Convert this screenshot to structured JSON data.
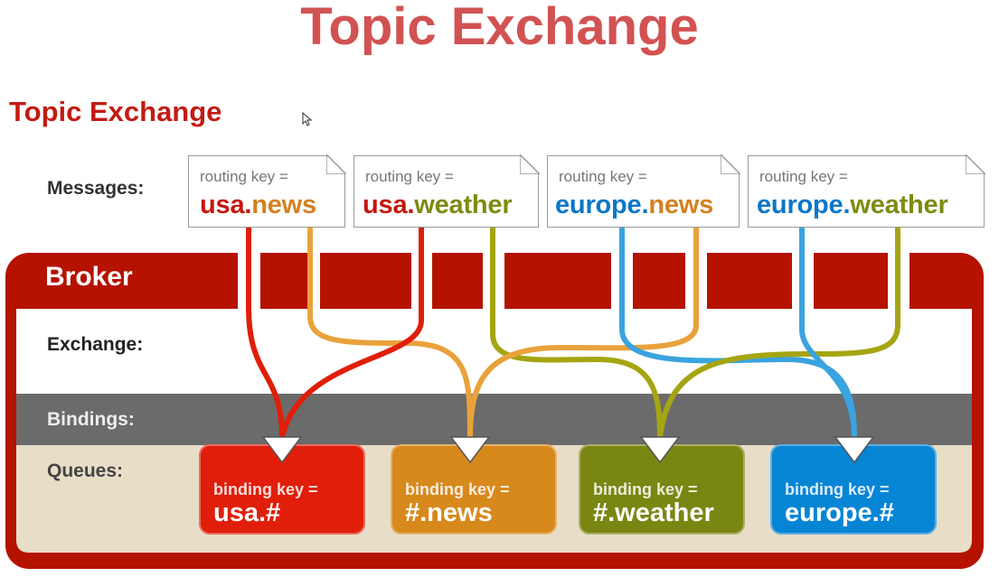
{
  "header": {
    "main_title": "Topic Exchange",
    "sub_title": "Topic Exchange"
  },
  "labels": {
    "messages": "Messages:",
    "broker": "Broker",
    "exchange": "Exchange:",
    "bindings": "Bindings:",
    "queues": "Queues:"
  },
  "messages": [
    {
      "routing_label": "routing key =",
      "word1": "usa",
      "dot": ".",
      "word2": "news",
      "color1": "#c4170e",
      "color2": "#d4811f"
    },
    {
      "routing_label": "routing key =",
      "word1": "usa",
      "dot": ".",
      "word2": "weather",
      "color1": "#c4170e",
      "color2": "#7d8b10"
    },
    {
      "routing_label": "routing key =",
      "word1": "europe",
      "dot": ".",
      "word2": "news",
      "color1": "#0a77c9",
      "color2": "#d4811f"
    },
    {
      "routing_label": "routing key =",
      "word1": "europe",
      "dot": ".",
      "word2": "weather",
      "color1": "#0a77c9",
      "color2": "#7d8b10"
    }
  ],
  "queues": [
    {
      "binding_label": "binding key =",
      "key": "usa.#",
      "color": "#e01e0a"
    },
    {
      "binding_label": "binding key =",
      "key": "#.news",
      "color": "#d7891c"
    },
    {
      "binding_label": "binding key =",
      "key": "#.weather",
      "color": "#7a8612"
    },
    {
      "binding_label": "binding key =",
      "key": "europe.#",
      "color": "#0785d5"
    }
  ],
  "colors": {
    "broker": "#b51200",
    "bindings_band": "#6b6b6b",
    "queues_band": "#e8dec7",
    "line_red": "#e01e0a",
    "line_orange": "#e9a23b",
    "line_olive": "#a5a512",
    "line_blue": "#3aa3e0"
  }
}
